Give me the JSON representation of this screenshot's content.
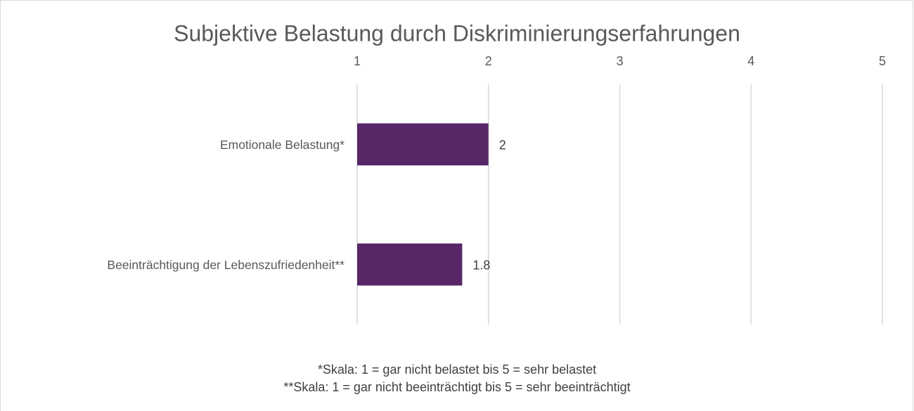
{
  "chart_data": {
    "type": "bar",
    "orientation": "horizontal",
    "title": "Subjektive Belastung durch Diskriminierungserfahrungen",
    "categories": [
      "Emotionale Belastung*",
      "Beeinträchtigung der Lebenszufriedenheit**"
    ],
    "values": [
      2,
      1.8
    ],
    "color": "#582667",
    "xlim": [
      1,
      5
    ],
    "xticks": [
      1,
      2,
      3,
      4,
      5
    ],
    "grid": true,
    "annotations": [
      "*Skala: 1 = gar nicht belastet bis 5 = sehr belastet",
      "**Skala: 1 = gar nicht beeinträchtigt bis 5 = sehr beeinträchtigt"
    ]
  }
}
